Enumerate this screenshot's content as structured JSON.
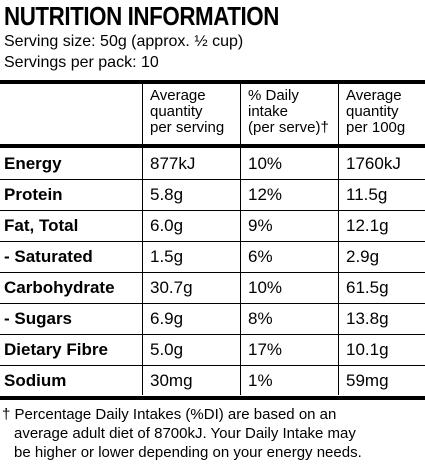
{
  "title": "NUTRITION INFORMATION",
  "serving_size": "Serving size: 50g (approx. ½ cup)",
  "servings_per_pack": "Servings per pack: 10",
  "headers": {
    "col1": [
      "Average",
      "quantity",
      "per serving"
    ],
    "col2": [
      "% Daily",
      "intake",
      "(per serve)†"
    ],
    "col3": [
      "Average",
      "quantity",
      "per 100g"
    ]
  },
  "rows": [
    {
      "name": "Energy",
      "per_serving": "877kJ",
      "daily_intake": "10%",
      "per_100g": "1760kJ"
    },
    {
      "name": "Protein",
      "per_serving": "5.8g",
      "daily_intake": "12%",
      "per_100g": "11.5g"
    },
    {
      "name": "Fat, Total",
      "per_serving": "6.0g",
      "daily_intake": "9%",
      "per_100g": "12.1g"
    },
    {
      "name": "-  Saturated",
      "per_serving": "1.5g",
      "daily_intake": "6%",
      "per_100g": "2.9g"
    },
    {
      "name": "Carbohydrate",
      "per_serving": "30.7g",
      "daily_intake": "10%",
      "per_100g": "61.5g"
    },
    {
      "name": "-  Sugars",
      "per_serving": "6.9g",
      "daily_intake": "8%",
      "per_100g": "13.8g"
    },
    {
      "name": "Dietary Fibre",
      "per_serving": "5.0g",
      "daily_intake": "17%",
      "per_100g": "10.1g"
    },
    {
      "name": "Sodium",
      "per_serving": "30mg",
      "daily_intake": "1%",
      "per_100g": "59mg"
    }
  ],
  "footnote": [
    "† Percentage Daily Intakes (%DI) are based on an",
    "average adult diet of 8700kJ. Your Daily Intake may",
    "be higher or lower depending on your energy needs."
  ]
}
